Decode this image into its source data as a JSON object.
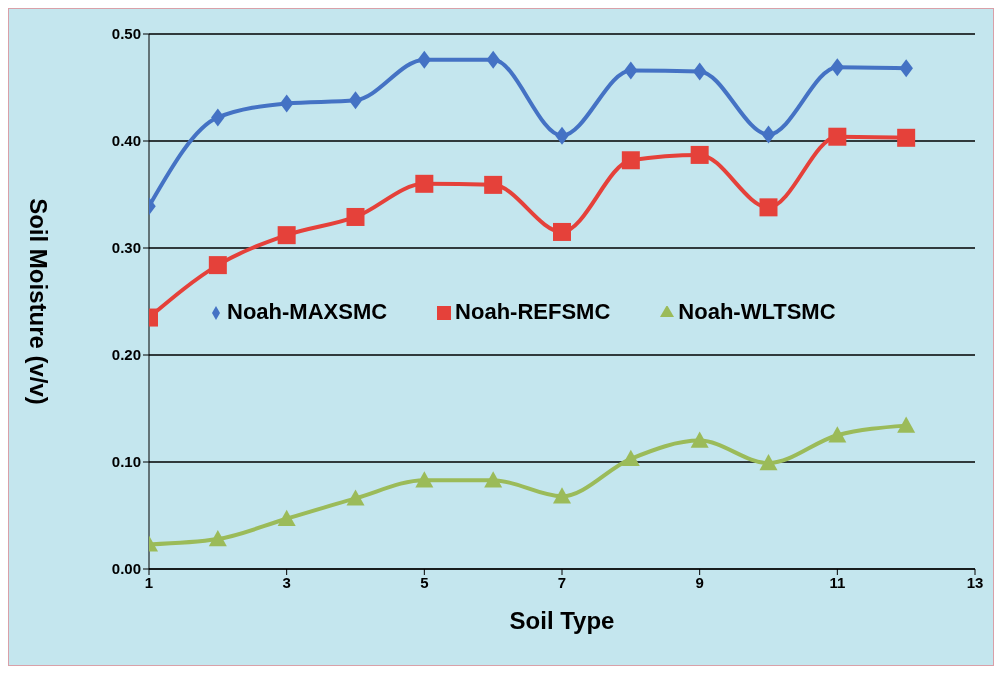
{
  "chart_data": {
    "type": "line",
    "xlabel": "Soil Type",
    "ylabel": "Soil Moisture (v/v)",
    "x": [
      1,
      2,
      3,
      4,
      5,
      6,
      7,
      8,
      9,
      10,
      11,
      12
    ],
    "series": [
      {
        "name": "Noah-MAXSMC",
        "color": "#4472c4",
        "marker": "diamond",
        "values": [
          0.339,
          0.422,
          0.435,
          0.438,
          0.476,
          0.476,
          0.405,
          0.466,
          0.465,
          0.406,
          0.469,
          0.468
        ]
      },
      {
        "name": "Noah-REFSMC",
        "color": "#e5413a",
        "marker": "square",
        "values": [
          0.235,
          0.284,
          0.312,
          0.329,
          0.36,
          0.359,
          0.315,
          0.382,
          0.387,
          0.338,
          0.404,
          0.403
        ]
      },
      {
        "name": "Noah-WLTSMC",
        "color": "#9bbb59",
        "marker": "triangle",
        "values": [
          0.023,
          0.028,
          0.047,
          0.066,
          0.083,
          0.083,
          0.068,
          0.103,
          0.12,
          0.099,
          0.125,
          0.134
        ]
      }
    ],
    "xlim": [
      1,
      13
    ],
    "xticks": [
      1,
      3,
      5,
      7,
      9,
      11,
      13
    ],
    "ylim": [
      0,
      0.5
    ],
    "yticks": [
      {
        "value": 0,
        "label": "0.00"
      },
      {
        "value": 0.1,
        "label": "0.10"
      },
      {
        "value": 0.2,
        "label": "0.20"
      },
      {
        "value": 0.3,
        "label": "0.30"
      },
      {
        "value": 0.4,
        "label": "0.40"
      },
      {
        "value": 0.5,
        "label": "0.50"
      }
    ],
    "grid": "y",
    "legend": "center",
    "line_style": "solid"
  }
}
